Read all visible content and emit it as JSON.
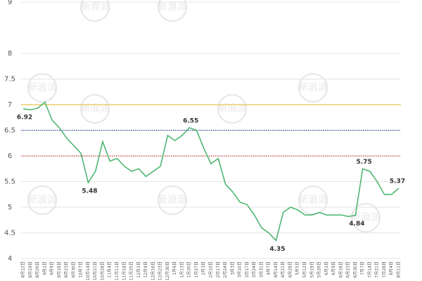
{
  "chart_data": {
    "type": "line",
    "categories": [
      "8月12日",
      "8月19日",
      "8月26日",
      "9月2日",
      "9月9日",
      "9月16日",
      "9月23日",
      "9月30日",
      "10月7日",
      "10月14日",
      "10月21日",
      "10月28日",
      "11月4日",
      "11月11日",
      "11月18日",
      "11月25日",
      "12月2日",
      "12月9日",
      "12月16日",
      "12月23日",
      "12月30日",
      "1月6日",
      "1月13日",
      "1月20日",
      "1月27日",
      "2月3日",
      "2月10日",
      "2月17日",
      "2月24日",
      "3月3日",
      "3月10日",
      "3月17日",
      "3月24日",
      "3月31日",
      "4月7日",
      "4月14日",
      "4月21日",
      "4月28日",
      "5月5日",
      "5月12日",
      "5月19日",
      "5月26日",
      "6月2日",
      "6月9日",
      "6月16日",
      "6月23日",
      "6月30日",
      "7月7日",
      "7月14日",
      "7月21日",
      "7月28日",
      "8月4日",
      "8月11日"
    ],
    "values": [
      6.92,
      6.9,
      6.93,
      7.05,
      6.7,
      6.55,
      6.35,
      6.2,
      6.05,
      5.48,
      5.7,
      6.28,
      5.9,
      5.95,
      5.8,
      5.7,
      5.75,
      5.6,
      5.7,
      5.8,
      6.4,
      6.3,
      6.4,
      6.55,
      6.5,
      6.15,
      5.85,
      5.95,
      5.45,
      5.3,
      5.1,
      5.05,
      4.85,
      4.6,
      4.5,
      4.35,
      4.9,
      5.0,
      4.95,
      4.85,
      4.85,
      4.9,
      4.85,
      4.85,
      4.85,
      4.82,
      4.84,
      5.75,
      5.7,
      5.5,
      5.25,
      5.25,
      5.37
    ],
    "value_labels": [
      "6.92",
      null,
      null,
      null,
      null,
      null,
      null,
      null,
      null,
      "5.48",
      null,
      null,
      null,
      null,
      null,
      null,
      null,
      null,
      null,
      null,
      null,
      null,
      null,
      "6.55",
      null,
      null,
      null,
      null,
      null,
      null,
      null,
      null,
      null,
      null,
      null,
      "4.35",
      null,
      null,
      null,
      null,
      null,
      null,
      null,
      null,
      null,
      null,
      "4.84",
      "5.75",
      null,
      null,
      null,
      null,
      "5.37"
    ],
    "color": "#45b36b",
    "ylim": [
      4,
      9
    ],
    "yticks": [
      4,
      4.5,
      5,
      5.5,
      6,
      6.5,
      7,
      7.5,
      8,
      9
    ],
    "grid": true,
    "reference_lines": [
      {
        "value": 7,
        "color": "#e8c84a",
        "dash": false
      },
      {
        "value": 6.5,
        "color": "#3a4fa0",
        "dash": true
      },
      {
        "value": 6,
        "color": "#d04040",
        "dash": true
      }
    ],
    "watermark": "新浪派"
  }
}
